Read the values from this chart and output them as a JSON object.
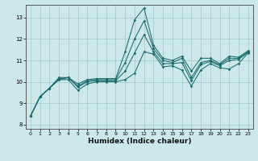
{
  "xlabel": "Humidex (Indice chaleur)",
  "background_color": "#cce8e8",
  "line_color": "#1a6b6b",
  "grid_color": "#aacccc",
  "x_values": [
    0,
    1,
    2,
    3,
    4,
    5,
    6,
    7,
    8,
    9,
    10,
    11,
    12,
    13,
    14,
    15,
    16,
    17,
    18,
    19,
    20,
    21,
    22,
    23
  ],
  "series": {
    "s1": [
      8.4,
      9.3,
      9.7,
      10.1,
      10.1,
      9.6,
      9.9,
      10.0,
      10.0,
      10.0,
      10.1,
      10.4,
      11.4,
      11.3,
      10.7,
      10.75,
      10.55,
      9.8,
      10.55,
      10.85,
      10.65,
      10.6,
      10.85,
      11.35
    ],
    "s2": [
      8.4,
      9.3,
      9.7,
      10.1,
      10.2,
      9.75,
      10.0,
      10.05,
      10.05,
      10.05,
      10.5,
      11.35,
      12.2,
      11.4,
      10.85,
      10.85,
      10.9,
      10.05,
      10.8,
      10.95,
      10.75,
      11.0,
      11.05,
      11.38
    ],
    "s3": [
      8.4,
      9.3,
      9.7,
      10.15,
      10.2,
      9.8,
      10.05,
      10.1,
      10.1,
      10.1,
      10.9,
      12.0,
      12.85,
      11.55,
      11.0,
      10.9,
      11.1,
      10.2,
      10.9,
      11.0,
      10.8,
      11.1,
      11.1,
      11.4
    ],
    "s4": [
      8.4,
      9.3,
      9.7,
      10.2,
      10.2,
      9.9,
      10.1,
      10.15,
      10.15,
      10.15,
      11.4,
      12.9,
      13.45,
      11.7,
      11.1,
      11.0,
      11.2,
      10.5,
      11.1,
      11.1,
      10.85,
      11.2,
      11.15,
      11.45
    ]
  },
  "ylim": [
    7.8,
    13.6
  ],
  "xlim": [
    -0.5,
    23.5
  ],
  "yticks": [
    8,
    9,
    10,
    11,
    12,
    13
  ],
  "xticks": [
    0,
    1,
    2,
    3,
    4,
    5,
    6,
    7,
    8,
    9,
    10,
    11,
    12,
    13,
    14,
    15,
    16,
    17,
    18,
    19,
    20,
    21,
    22,
    23
  ]
}
